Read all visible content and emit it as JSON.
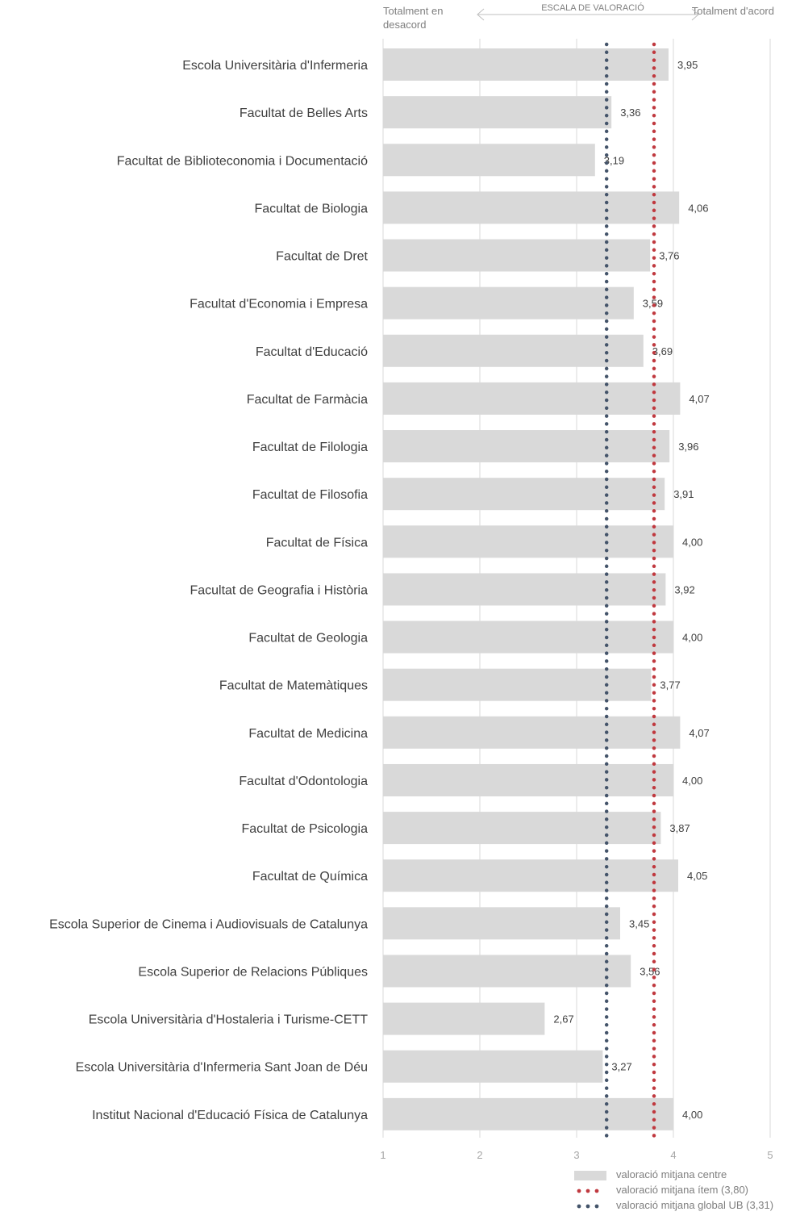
{
  "header": {
    "left_label": "Totalment en desacord",
    "center_label": "ESCALA DE VALORACIÓ",
    "right_label": "Totalment d'acord"
  },
  "colors": {
    "bar": "#d9d9d9",
    "item_line": "#c0393f",
    "global_line": "#44546a",
    "text": "#404040",
    "axis_text": "#a6a6a6",
    "grid": "#d9d9d9"
  },
  "chart_data": {
    "type": "bar",
    "orientation": "horizontal",
    "xlim": [
      1,
      5
    ],
    "xticks": [
      "1",
      "2",
      "3",
      "4",
      "5"
    ],
    "grid": true,
    "legend_position": "bottom-right",
    "categories": [
      "Escola Universitària d'Infermeria",
      "Facultat de Belles Arts",
      "Facultat de Biblioteconomia i Documentació",
      "Facultat de Biologia",
      "Facultat de Dret",
      "Facultat d'Economia i Empresa",
      "Facultat d'Educació",
      "Facultat de Farmàcia",
      "Facultat de Filologia",
      "Facultat de Filosofia",
      "Facultat de Física",
      "Facultat de Geografia i Història",
      "Facultat de Geologia",
      "Facultat de Matemàtiques",
      "Facultat de Medicina",
      "Facultat d'Odontologia",
      "Facultat de Psicologia",
      "Facultat de Química",
      "Escola Superior de Cinema i Audiovisuals de Catalunya",
      "Escola Superior de Relacions Públiques",
      "Escola Universitària d'Hostaleria i Turisme-CETT",
      "Escola Universitària d'Infermeria Sant Joan de Déu",
      "Institut Nacional d'Educació Física de Catalunya"
    ],
    "values": [
      3.95,
      3.36,
      3.19,
      4.06,
      3.76,
      3.59,
      3.69,
      4.07,
      3.96,
      3.91,
      4.0,
      3.92,
      4.0,
      3.77,
      4.07,
      4.0,
      3.87,
      4.05,
      3.45,
      3.56,
      2.67,
      3.27,
      4.0
    ],
    "value_labels": [
      "3,95",
      "3,36",
      "3,19",
      "4,06",
      "3,76",
      "3,59",
      "3,69",
      "4,07",
      "3,96",
      "3,91",
      "4,00",
      "3,92",
      "4,00",
      "3,77",
      "4,07",
      "4,00",
      "3,87",
      "4,05",
      "3,45",
      "3,56",
      "2,67",
      "3,27",
      "4,00"
    ],
    "reference_lines": [
      {
        "name": "valoració mitjana ítem (3,80)",
        "value": 3.8,
        "color": "#c0393f"
      },
      {
        "name": "valoració mitjana global UB (3,31)",
        "value": 3.31,
        "color": "#44546a"
      }
    ],
    "legend": [
      {
        "label": "valoració mitjana centre",
        "kind": "bar"
      },
      {
        "label": "valoració mitjana ítem (3,80)",
        "kind": "item"
      },
      {
        "label": "valoració mitjana global UB (3,31)",
        "kind": "global"
      }
    ]
  }
}
